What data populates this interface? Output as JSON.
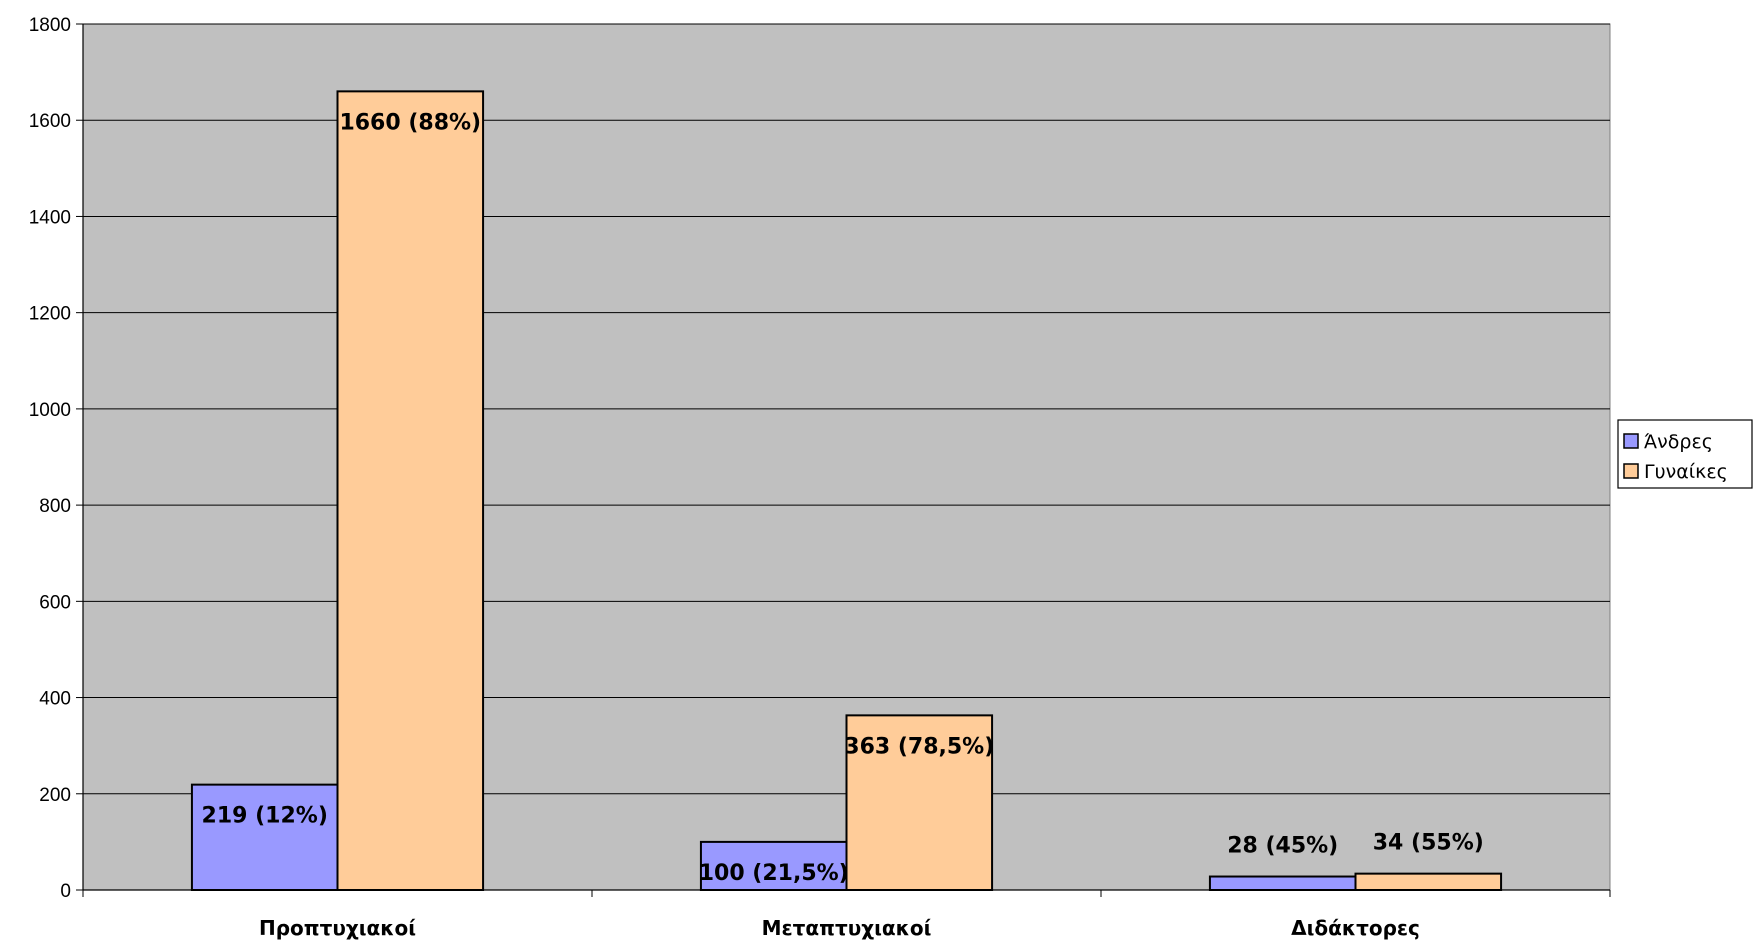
{
  "chart_data": {
    "type": "bar",
    "title": "",
    "xlabel": "",
    "ylabel": "",
    "categories": [
      "Προπτυχιακοί",
      "Μεταπτυχιακοί",
      "Διδάκτορες"
    ],
    "series": [
      {
        "name": "Άνδρες",
        "color": "#9999FF",
        "values": [
          219,
          100,
          28
        ],
        "labels": [
          "219 (12%)",
          "100 (21,5%)",
          "28 (45%)"
        ]
      },
      {
        "name": "Γυναίκες",
        "color": "#FFCC99",
        "values": [
          1660,
          363,
          34
        ],
        "labels": [
          "1660 (88%)",
          "363 (78,5%)",
          "34 (55%)"
        ]
      }
    ],
    "ylim": [
      0,
      1800
    ],
    "yticks": [
      0,
      200,
      400,
      600,
      800,
      1000,
      1200,
      1400,
      1600,
      1800
    ],
    "grid": true,
    "plot_background": "#C0C0C0",
    "legend_position": "right"
  }
}
